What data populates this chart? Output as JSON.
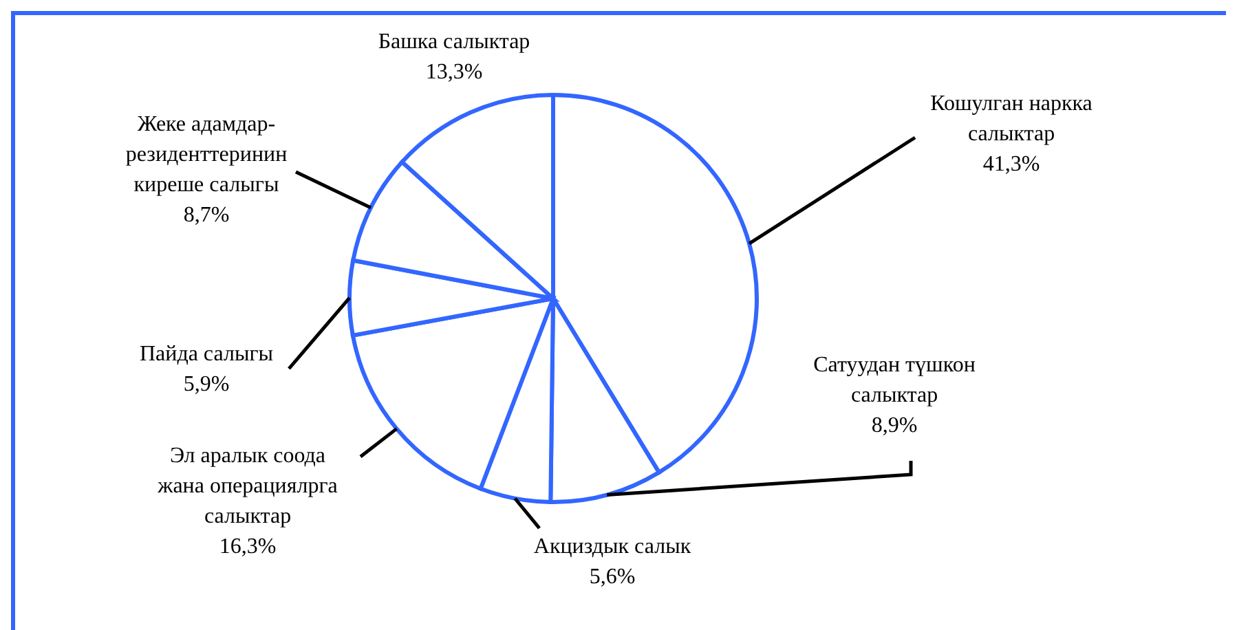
{
  "chart_data": {
    "type": "pie",
    "categories": [
      "Кошулган наркка салыктар",
      "Сатуудан түшкон салыктар",
      "Акциздык салык",
      "Эл аралык соода жана операциялрга салыктар",
      "Пайда салыгы",
      "Жеке адамдар-резиденттеринин киреше салыгы",
      "Башка салыктар"
    ],
    "values": [
      41.3,
      8.9,
      5.6,
      16.3,
      5.9,
      8.7,
      13.3
    ],
    "value_labels": [
      "41,3%",
      "8,9%",
      "5,6%",
      "16,3%",
      "5,9%",
      "8,7%",
      "13,3%"
    ],
    "colors": [
      "#ffffff",
      "#ffffff",
      "#ffffff",
      "#ffffff",
      "#ffffff",
      "#ffffff",
      "#ffffff"
    ]
  }
}
